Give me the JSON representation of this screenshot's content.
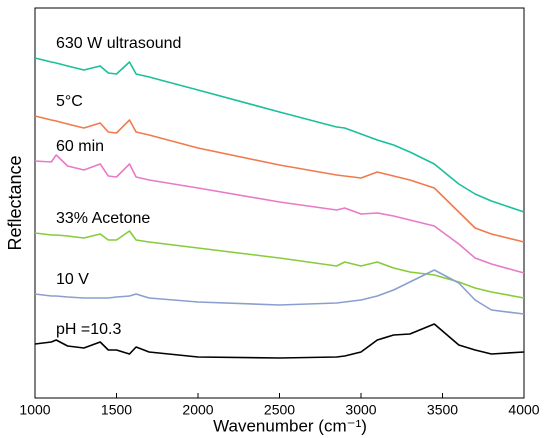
{
  "chart_data": {
    "type": "line",
    "xlabel": "Wavenumber (cm⁻¹)",
    "ylabel": "Reflectance",
    "x": [
      1000,
      1100,
      1130,
      1200,
      1300,
      1400,
      1450,
      1500,
      1580,
      1620,
      1700,
      2000,
      2500,
      2850,
      2900,
      3000,
      3100,
      3200,
      3300,
      3450,
      3600,
      3700,
      3800,
      4000
    ],
    "xlim": [
      1000,
      4000
    ],
    "xticks": [
      1000,
      1500,
      2000,
      2500,
      3000,
      3500,
      4000
    ],
    "ylim": [
      0,
      390
    ],
    "series": [
      {
        "name": "630 W ultrasound",
        "color": "#1bbf9c",
        "values": [
          340,
          336,
          335,
          332,
          328,
          332,
          325,
          324,
          336,
          324,
          321,
          308,
          286,
          271,
          270,
          264,
          258,
          253,
          246,
          234,
          214,
          204,
          197,
          186
        ]
      },
      {
        "name": "5°C",
        "color": "#f07a4e",
        "values": [
          282,
          278,
          277,
          274,
          270,
          275,
          266,
          265,
          278,
          266,
          263,
          250,
          233,
          223,
          222,
          220,
          226,
          222,
          218,
          210,
          186,
          170,
          164,
          156
        ]
      },
      {
        "name": "60 min",
        "color": "#e87ac8",
        "values": [
          237,
          236,
          243,
          232,
          228,
          234,
          222,
          221,
          234,
          221,
          218,
          210,
          196,
          188,
          190,
          184,
          185,
          182,
          178,
          172,
          154,
          140,
          134,
          125
        ]
      },
      {
        "name": "33% Acetone",
        "color": "#86cc3a",
        "values": [
          165,
          163,
          163,
          162,
          160,
          164,
          158,
          158,
          167,
          158,
          156,
          150,
          140,
          132,
          136,
          132,
          136,
          130,
          126,
          123,
          116,
          110,
          106,
          100
        ]
      },
      {
        "name": "10 V",
        "color": "#8a9fcf",
        "values": [
          104,
          102,
          102,
          101,
          100,
          100,
          100,
          101,
          102,
          104,
          100,
          96,
          93,
          95,
          96,
          98,
          102,
          108,
          116,
          128,
          115,
          98,
          88,
          84
        ]
      },
      {
        "name": "pH =10.3",
        "color": "#000000",
        "values": [
          54,
          56,
          58,
          52,
          50,
          56,
          48,
          48,
          44,
          51,
          46,
          41,
          40,
          41,
          42,
          46,
          58,
          63,
          64,
          74,
          53,
          48,
          44,
          46
        ]
      }
    ]
  }
}
